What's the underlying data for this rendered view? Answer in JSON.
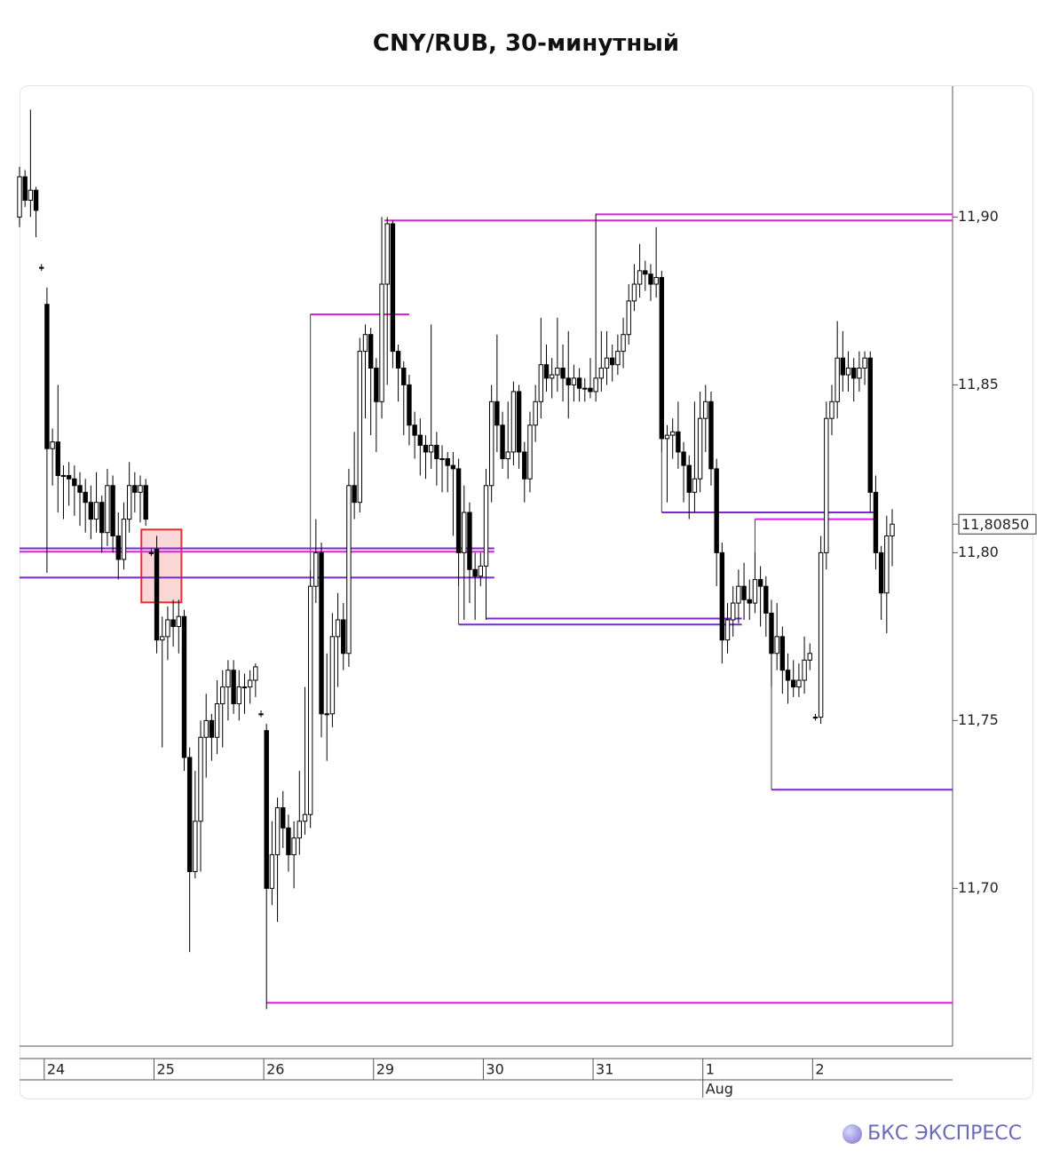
{
  "chart_data": {
    "type": "candlestick",
    "title": "CNY/RUB, 30-минутный",
    "ylim": [
      11.653,
      11.939
    ],
    "yticks": [
      {
        "value": 11.7,
        "label": "11,70"
      },
      {
        "value": 11.75,
        "label": "11,75"
      },
      {
        "value": 11.8,
        "label": "11,80"
      },
      {
        "value": 11.85,
        "label": "11,85"
      },
      {
        "value": 11.9,
        "label": "11,90"
      }
    ],
    "xlim": [
      0,
      170
    ],
    "xticks": [
      {
        "value": 4.5,
        "label": "24"
      },
      {
        "value": 24.5,
        "label": "25"
      },
      {
        "value": 44.5,
        "label": "26"
      },
      {
        "value": 64.5,
        "label": "29"
      },
      {
        "value": 84.5,
        "label": "30"
      },
      {
        "value": 104.5,
        "label": "31"
      },
      {
        "value": 124.5,
        "label": "1"
      },
      {
        "value": 144.5,
        "label": "2"
      }
    ],
    "month_label": {
      "value": 124.5,
      "label": "Aug"
    },
    "up_color": "#ffffff",
    "down_color": "#000000",
    "ohlc": [
      [
        11.9,
        11.915,
        11.897,
        11.912
      ],
      [
        11.912,
        11.914,
        11.903,
        11.905
      ],
      [
        11.905,
        11.932,
        11.9,
        11.908
      ],
      [
        11.908,
        11.909,
        11.894,
        11.902
      ],
      [
        11.885,
        11.886,
        11.884,
        11.885
      ],
      [
        11.874,
        11.879,
        11.794,
        11.831
      ],
      [
        11.831,
        11.837,
        11.82,
        11.833
      ],
      [
        11.833,
        11.85,
        11.812,
        11.823
      ],
      [
        11.823,
        11.826,
        11.81,
        11.823
      ],
      [
        11.823,
        11.827,
        11.814,
        11.822
      ],
      [
        11.822,
        11.826,
        11.811,
        11.82
      ],
      [
        11.82,
        11.824,
        11.808,
        11.818
      ],
      [
        11.818,
        11.822,
        11.806,
        11.815
      ],
      [
        11.815,
        11.82,
        11.804,
        11.81
      ],
      [
        11.81,
        11.824,
        11.806,
        11.815
      ],
      [
        11.815,
        11.817,
        11.8,
        11.806
      ],
      [
        11.806,
        11.825,
        11.802,
        11.82
      ],
      [
        11.82,
        11.823,
        11.8,
        11.805
      ],
      [
        11.805,
        11.812,
        11.792,
        11.798
      ],
      [
        11.798,
        11.815,
        11.795,
        11.81
      ],
      [
        11.81,
        11.827,
        11.806,
        11.82
      ],
      [
        11.82,
        11.824,
        11.812,
        11.818
      ],
      [
        11.818,
        11.823,
        11.809,
        11.82
      ],
      [
        11.82,
        11.822,
        11.808,
        11.81
      ],
      [
        11.8,
        11.801,
        11.799,
        11.8
      ],
      [
        11.801,
        11.805,
        11.77,
        11.774
      ],
      [
        11.774,
        11.781,
        11.742,
        11.775
      ],
      [
        11.775,
        11.784,
        11.768,
        11.78
      ],
      [
        11.78,
        11.786,
        11.772,
        11.778
      ],
      [
        11.778,
        11.786,
        11.77,
        11.781
      ],
      [
        11.781,
        11.783,
        11.735,
        11.739
      ],
      [
        11.739,
        11.742,
        11.681,
        11.705
      ],
      [
        11.705,
        11.735,
        11.703,
        11.72
      ],
      [
        11.72,
        11.75,
        11.705,
        11.745
      ],
      [
        11.745,
        11.758,
        11.733,
        11.75
      ],
      [
        11.75,
        11.752,
        11.738,
        11.745
      ],
      [
        11.745,
        11.762,
        11.74,
        11.755
      ],
      [
        11.755,
        11.765,
        11.742,
        11.76
      ],
      [
        11.76,
        11.768,
        11.75,
        11.765
      ],
      [
        11.765,
        11.768,
        11.752,
        11.755
      ],
      [
        11.755,
        11.765,
        11.75,
        11.76
      ],
      [
        11.76,
        11.764,
        11.752,
        11.76
      ],
      [
        11.76,
        11.765,
        11.755,
        11.762
      ],
      [
        11.762,
        11.767,
        11.757,
        11.766
      ],
      [
        11.752,
        11.753,
        11.751,
        11.752
      ],
      [
        11.747,
        11.749,
        11.664,
        11.7
      ],
      [
        11.7,
        11.72,
        11.695,
        11.71
      ],
      [
        11.71,
        11.727,
        11.69,
        11.724
      ],
      [
        11.724,
        11.729,
        11.712,
        11.718
      ],
      [
        11.718,
        11.722,
        11.705,
        11.71
      ],
      [
        11.71,
        11.72,
        11.7,
        11.715
      ],
      [
        11.715,
        11.735,
        11.71,
        11.72
      ],
      [
        11.72,
        11.76,
        11.716,
        11.722
      ],
      [
        11.722,
        11.795,
        11.718,
        11.79
      ],
      [
        11.79,
        11.81,
        11.785,
        11.8
      ],
      [
        11.8,
        11.803,
        11.745,
        11.752
      ],
      [
        11.752,
        11.77,
        11.738,
        11.752
      ],
      [
        11.752,
        11.782,
        11.748,
        11.775
      ],
      [
        11.775,
        11.788,
        11.76,
        11.78
      ],
      [
        11.78,
        11.785,
        11.765,
        11.77
      ],
      [
        11.77,
        11.825,
        11.766,
        11.82
      ],
      [
        11.82,
        11.836,
        11.81,
        11.815
      ],
      [
        11.815,
        11.864,
        11.812,
        11.86
      ],
      [
        11.86,
        11.868,
        11.84,
        11.865
      ],
      [
        11.865,
        11.867,
        11.835,
        11.855
      ],
      [
        11.855,
        11.858,
        11.83,
        11.845
      ],
      [
        11.845,
        11.9,
        11.84,
        11.88
      ],
      [
        11.88,
        11.9,
        11.85,
        11.898
      ],
      [
        11.898,
        11.899,
        11.855,
        11.86
      ],
      [
        11.86,
        11.862,
        11.845,
        11.855
      ],
      [
        11.855,
        11.857,
        11.835,
        11.85
      ],
      [
        11.85,
        11.853,
        11.832,
        11.838
      ],
      [
        11.838,
        11.842,
        11.828,
        11.835
      ],
      [
        11.835,
        11.84,
        11.823,
        11.832
      ],
      [
        11.832,
        11.835,
        11.822,
        11.83
      ],
      [
        11.83,
        11.868,
        11.825,
        11.832
      ],
      [
        11.832,
        11.836,
        11.82,
        11.828
      ],
      [
        11.828,
        11.832,
        11.818,
        11.828
      ],
      [
        11.828,
        11.83,
        11.818,
        11.826
      ],
      [
        11.826,
        11.83,
        11.805,
        11.825
      ],
      [
        11.825,
        11.828,
        11.79,
        11.8
      ],
      [
        11.8,
        11.82,
        11.78,
        11.812
      ],
      [
        11.812,
        11.815,
        11.785,
        11.795
      ],
      [
        11.795,
        11.8,
        11.78,
        11.793
      ],
      [
        11.793,
        11.8,
        11.79,
        11.796
      ],
      [
        11.796,
        11.825,
        11.78,
        11.82
      ],
      [
        11.82,
        11.85,
        11.815,
        11.845
      ],
      [
        11.845,
        11.865,
        11.83,
        11.838
      ],
      [
        11.838,
        11.842,
        11.825,
        11.828
      ],
      [
        11.828,
        11.845,
        11.822,
        11.83
      ],
      [
        11.83,
        11.851,
        11.826,
        11.848
      ],
      [
        11.848,
        11.85,
        11.825,
        11.83
      ],
      [
        11.83,
        11.833,
        11.815,
        11.822
      ],
      [
        11.822,
        11.842,
        11.818,
        11.838
      ],
      [
        11.838,
        11.85,
        11.833,
        11.845
      ],
      [
        11.845,
        11.87,
        11.84,
        11.856
      ],
      [
        11.856,
        11.862,
        11.848,
        11.852
      ],
      [
        11.852,
        11.858,
        11.846,
        11.853
      ],
      [
        11.853,
        11.87,
        11.848,
        11.855
      ],
      [
        11.855,
        11.862,
        11.845,
        11.852
      ],
      [
        11.852,
        11.866,
        11.84,
        11.85
      ],
      [
        11.85,
        11.856,
        11.845,
        11.852
      ],
      [
        11.852,
        11.855,
        11.845,
        11.849
      ],
      [
        11.849,
        11.852,
        11.845,
        11.849
      ],
      [
        11.849,
        11.858,
        11.846,
        11.848
      ],
      [
        11.848,
        11.901,
        11.845,
        11.852
      ],
      [
        11.852,
        11.866,
        11.848,
        11.855
      ],
      [
        11.855,
        11.866,
        11.85,
        11.858
      ],
      [
        11.858,
        11.862,
        11.851,
        11.856
      ],
      [
        11.856,
        11.865,
        11.853,
        11.86
      ],
      [
        11.86,
        11.87,
        11.855,
        11.865
      ],
      [
        11.865,
        11.88,
        11.862,
        11.875
      ],
      [
        11.875,
        11.886,
        11.872,
        11.88
      ],
      [
        11.88,
        11.892,
        11.876,
        11.884
      ],
      [
        11.884,
        11.887,
        11.878,
        11.883
      ],
      [
        11.883,
        11.886,
        11.875,
        11.88
      ],
      [
        11.88,
        11.897,
        11.876,
        11.882
      ],
      [
        11.882,
        11.884,
        11.83,
        11.834
      ],
      [
        11.834,
        11.838,
        11.815,
        11.835
      ],
      [
        11.835,
        11.84,
        11.828,
        11.836
      ],
      [
        11.836,
        11.845,
        11.825,
        11.83
      ],
      [
        11.83,
        11.833,
        11.815,
        11.826
      ],
      [
        11.826,
        11.829,
        11.81,
        11.818
      ],
      [
        11.818,
        11.845,
        11.812,
        11.822
      ],
      [
        11.822,
        11.848,
        11.818,
        11.84
      ],
      [
        11.84,
        11.85,
        11.83,
        11.845
      ],
      [
        11.845,
        11.848,
        11.82,
        11.825
      ],
      [
        11.825,
        11.828,
        11.79,
        11.8
      ],
      [
        11.8,
        11.803,
        11.767,
        11.774
      ],
      [
        11.774,
        11.785,
        11.77,
        11.78
      ],
      [
        11.78,
        11.79,
        11.775,
        11.785
      ],
      [
        11.785,
        11.795,
        11.779,
        11.79
      ],
      [
        11.79,
        11.797,
        11.78,
        11.786
      ],
      [
        11.786,
        11.792,
        11.78,
        11.785
      ],
      [
        11.785,
        11.8,
        11.782,
        11.792
      ],
      [
        11.792,
        11.796,
        11.778,
        11.79
      ],
      [
        11.79,
        11.793,
        11.775,
        11.782
      ],
      [
        11.782,
        11.786,
        11.76,
        11.77
      ],
      [
        11.77,
        11.785,
        11.765,
        11.775
      ],
      [
        11.775,
        11.778,
        11.758,
        11.765
      ],
      [
        11.765,
        11.77,
        11.755,
        11.762
      ],
      [
        11.762,
        11.768,
        11.757,
        11.76
      ],
      [
        11.76,
        11.767,
        11.757,
        11.762
      ],
      [
        11.762,
        11.775,
        11.758,
        11.768
      ],
      [
        11.768,
        11.773,
        11.765,
        11.77
      ],
      [
        11.751,
        11.752,
        11.75,
        11.751
      ],
      [
        11.751,
        11.805,
        11.749,
        11.8
      ],
      [
        11.8,
        11.845,
        11.795,
        11.84
      ],
      [
        11.84,
        11.85,
        11.835,
        11.845
      ],
      [
        11.845,
        11.869,
        11.84,
        11.858
      ],
      [
        11.858,
        11.866,
        11.848,
        11.853
      ],
      [
        11.853,
        11.86,
        11.848,
        11.855
      ],
      [
        11.855,
        11.858,
        11.845,
        11.852
      ],
      [
        11.852,
        11.86,
        11.848,
        11.855
      ],
      [
        11.855,
        11.86,
        11.85,
        11.858
      ],
      [
        11.858,
        11.86,
        11.812,
        11.818
      ],
      [
        11.818,
        11.823,
        11.795,
        11.8
      ],
      [
        11.8,
        11.802,
        11.78,
        11.788
      ],
      [
        11.788,
        11.811,
        11.776,
        11.805
      ],
      [
        11.805,
        11.813,
        11.796,
        11.8085
      ]
    ],
    "levels": [
      {
        "price": 11.899,
        "from": 66.5,
        "to": 170,
        "color": "#e01ee0"
      },
      {
        "price": 11.9008,
        "from": 105,
        "to": 170,
        "color": "#e01ee0"
      },
      {
        "price": 11.871,
        "from": 53,
        "to": 71,
        "color": "#e01ee0"
      },
      {
        "price": 11.812,
        "from": 117,
        "to": 156,
        "color": "#7a28d0"
      },
      {
        "price": 11.81,
        "from": 134,
        "to": 156,
        "color": "#e01ee0"
      },
      {
        "price": 11.8013,
        "from": 0,
        "to": 86.5,
        "color": "#7a28d0"
      },
      {
        "price": 11.8003,
        "from": 0,
        "to": 86.5,
        "color": "#e01ee0"
      },
      {
        "price": 11.7926,
        "from": 0,
        "to": 86.5,
        "color": "#7a28d0"
      },
      {
        "price": 11.7804,
        "from": 85,
        "to": 131.6,
        "color": "#7a28d0"
      },
      {
        "price": 11.7786,
        "from": 80,
        "to": 131.6,
        "color": "#7a28d0"
      },
      {
        "price": 11.7294,
        "from": 137,
        "to": 170,
        "color": "#7a28d0"
      },
      {
        "price": 11.6659,
        "from": 45,
        "to": 170,
        "color": "#e01ee0"
      }
    ],
    "highlight": {
      "x": [
        22.2,
        29.5
      ],
      "y": [
        11.7852,
        11.8069
      ],
      "color": "#e53030"
    },
    "last_price": {
      "value": 11.8085,
      "label": "11,80850"
    }
  },
  "footer": {
    "logo": "БКС ЭКСПРЕСС"
  }
}
